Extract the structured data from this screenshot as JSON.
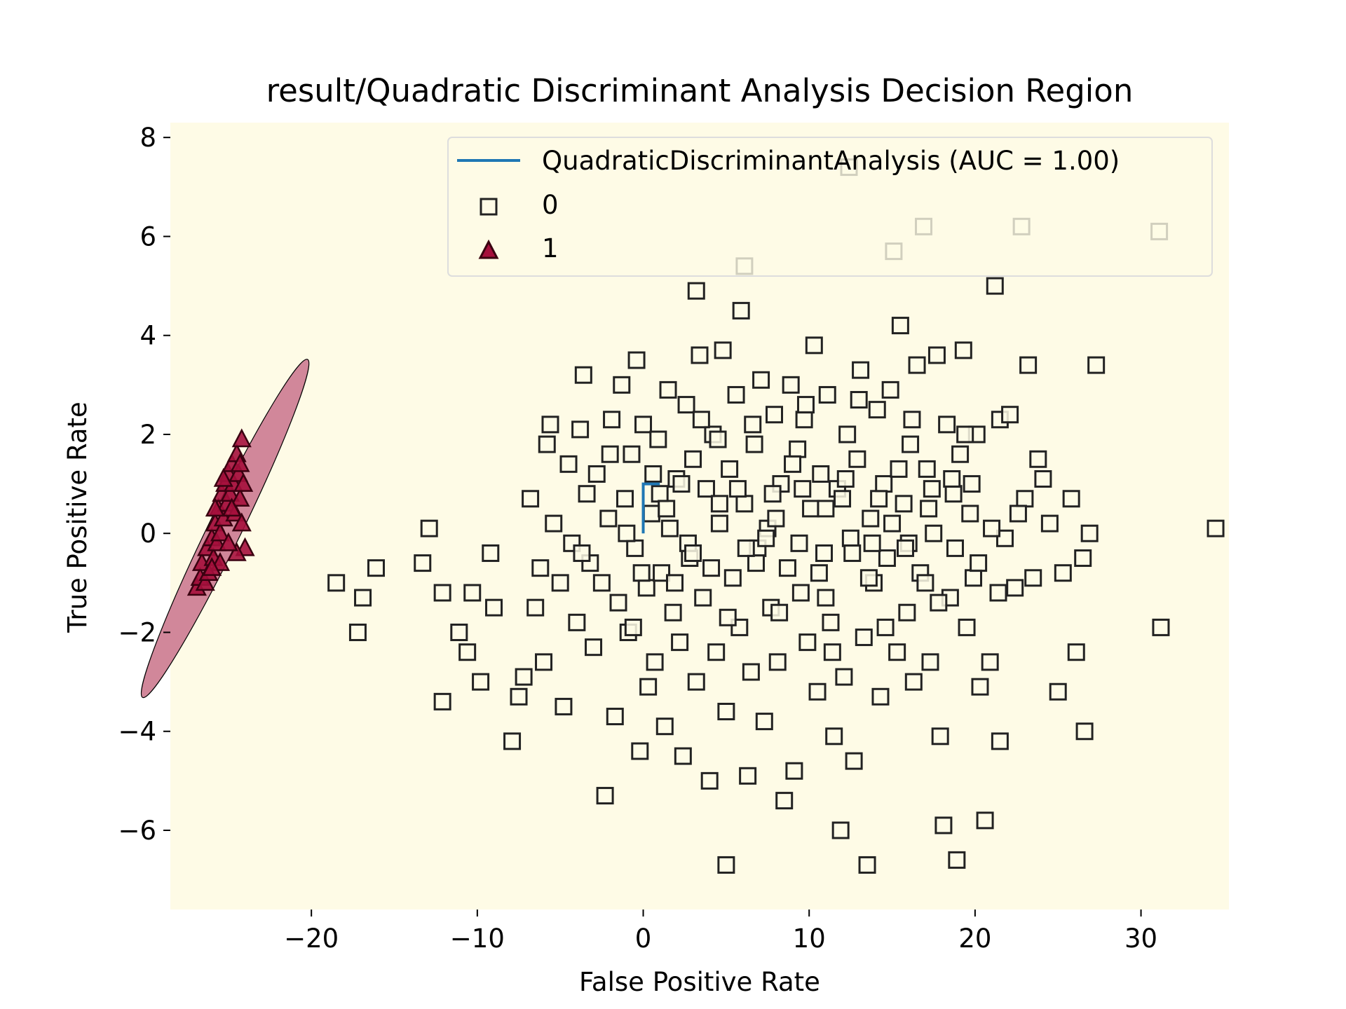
{
  "chart_data": {
    "type": "scatter",
    "title": "result/Quadratic Discriminant Analysis Decision Region",
    "xlabel": "False Positive Rate",
    "ylabel": "True Positive Rate",
    "xlim": [
      -28.5,
      35.3
    ],
    "ylim": [
      -7.6,
      8.3
    ],
    "xticks": [
      -20,
      -10,
      0,
      10,
      20,
      30
    ],
    "xtick_labels": [
      "−20",
      "−10",
      "0",
      "10",
      "20",
      "30"
    ],
    "yticks": [
      -6,
      -4,
      -2,
      0,
      2,
      4,
      6,
      8
    ],
    "ytick_labels": [
      "−6",
      "−4",
      "−2",
      "0",
      "2",
      "4",
      "6",
      "8"
    ],
    "grid": false,
    "legend_position": "top-right",
    "background_color": "#fefbe6",
    "region_colors": {
      "class_0": "#fefbe6",
      "class_1": "#d1879a"
    },
    "decision_region_class_1": {
      "shape": "ellipse",
      "center": [
        -25.2,
        0.1
      ],
      "semi_axis_major": 3.8,
      "semi_axis_minor": 1.0,
      "note_axes_units": "x in x-axis units, y in y-axis units"
    },
    "roc_curve": {
      "name": "QuadraticDiscriminantAnalysis (AUC = 1.00)",
      "color": "#1f77b4",
      "points": [
        [
          0,
          0
        ],
        [
          0,
          1
        ],
        [
          1,
          1
        ]
      ]
    },
    "series": [
      {
        "name": "0",
        "marker": "square",
        "face_color": "#fefbe6",
        "edge_color": "#222222",
        "points": [
          [
            -18.5,
            -1.0
          ],
          [
            -16.9,
            -1.3
          ],
          [
            -16.1,
            -0.7
          ],
          [
            -17.2,
            -2.0
          ],
          [
            -13.3,
            -0.6
          ],
          [
            -12.9,
            0.1
          ],
          [
            -12.1,
            -1.2
          ],
          [
            -11.1,
            -2.0
          ],
          [
            -10.6,
            -2.4
          ],
          [
            -10.3,
            -1.2
          ],
          [
            -9.8,
            -3.0
          ],
          [
            -9.2,
            -0.4
          ],
          [
            -9.0,
            -1.5
          ],
          [
            -12.1,
            -3.4
          ],
          [
            -7.9,
            -4.2
          ],
          [
            -7.5,
            -3.3
          ],
          [
            -7.2,
            -2.9
          ],
          [
            -6.8,
            0.7
          ],
          [
            -6.5,
            -1.5
          ],
          [
            -6.2,
            -0.7
          ],
          [
            -6.0,
            -2.6
          ],
          [
            -5.8,
            1.8
          ],
          [
            -5.6,
            2.2
          ],
          [
            -5.4,
            0.2
          ],
          [
            -5.0,
            -1.0
          ],
          [
            -4.8,
            -3.5
          ],
          [
            -4.5,
            1.4
          ],
          [
            -4.3,
            -0.2
          ],
          [
            -4.0,
            -1.8
          ],
          [
            -3.8,
            2.1
          ],
          [
            -3.6,
            3.2
          ],
          [
            -3.4,
            0.8
          ],
          [
            -3.2,
            -0.6
          ],
          [
            -3.0,
            -2.3
          ],
          [
            -2.8,
            1.2
          ],
          [
            -2.5,
            -1.0
          ],
          [
            -2.3,
            -5.3
          ],
          [
            -2.1,
            0.3
          ],
          [
            -1.9,
            2.3
          ],
          [
            -1.7,
            -3.7
          ],
          [
            -1.5,
            -1.4
          ],
          [
            -1.3,
            3.0
          ],
          [
            -1.1,
            0.7
          ],
          [
            -0.9,
            -2.0
          ],
          [
            -0.7,
            1.6
          ],
          [
            -0.5,
            -0.3
          ],
          [
            -0.4,
            3.5
          ],
          [
            -0.2,
            -4.4
          ],
          [
            0.0,
            2.2
          ],
          [
            0.2,
            -1.1
          ],
          [
            0.3,
            -3.1
          ],
          [
            0.5,
            0.4
          ],
          [
            0.7,
            -2.6
          ],
          [
            0.9,
            1.9
          ],
          [
            1.1,
            -0.8
          ],
          [
            1.3,
            -3.9
          ],
          [
            1.5,
            2.9
          ],
          [
            1.6,
            0.1
          ],
          [
            1.8,
            -1.6
          ],
          [
            2.0,
            1.1
          ],
          [
            2.2,
            -2.2
          ],
          [
            2.4,
            -4.5
          ],
          [
            2.6,
            2.6
          ],
          [
            2.8,
            -0.5
          ],
          [
            3.0,
            1.5
          ],
          [
            3.2,
            -3.0
          ],
          [
            3.2,
            4.9
          ],
          [
            3.4,
            3.6
          ],
          [
            3.6,
            -1.3
          ],
          [
            3.8,
            0.9
          ],
          [
            4.0,
            -5.0
          ],
          [
            4.2,
            2.0
          ],
          [
            4.4,
            -2.4
          ],
          [
            4.6,
            0.2
          ],
          [
            4.8,
            3.7
          ],
          [
            5.0,
            -3.6
          ],
          [
            5.2,
            1.3
          ],
          [
            5.0,
            -6.7
          ],
          [
            5.4,
            -0.9
          ],
          [
            5.6,
            2.8
          ],
          [
            5.8,
            -1.9
          ],
          [
            5.9,
            4.5
          ],
          [
            6.1,
            0.6
          ],
          [
            6.1,
            5.4
          ],
          [
            6.3,
            -4.9
          ],
          [
            6.5,
            -2.8
          ],
          [
            6.7,
            1.8
          ],
          [
            6.9,
            -0.3
          ],
          [
            7.1,
            3.1
          ],
          [
            7.3,
            -3.8
          ],
          [
            7.5,
            0.1
          ],
          [
            7.7,
            -1.5
          ],
          [
            7.9,
            2.4
          ],
          [
            8.1,
            -2.6
          ],
          [
            8.3,
            1.0
          ],
          [
            8.5,
            -5.4
          ],
          [
            8.7,
            -0.7
          ],
          [
            8.9,
            3.0
          ],
          [
            9.1,
            -4.8
          ],
          [
            9.3,
            1.7
          ],
          [
            9.5,
            -1.2
          ],
          [
            9.7,
            2.3
          ],
          [
            9.9,
            -2.2
          ],
          [
            10.1,
            0.5
          ],
          [
            10.3,
            3.8
          ],
          [
            10.5,
            -3.2
          ],
          [
            10.7,
            1.2
          ],
          [
            10.9,
            -0.4
          ],
          [
            11.1,
            2.8
          ],
          [
            11.3,
            -1.8
          ],
          [
            11.5,
            -4.1
          ],
          [
            11.7,
            0.9
          ],
          [
            11.9,
            -6.0
          ],
          [
            12.1,
            -2.9
          ],
          [
            12.3,
            2.0
          ],
          [
            12.5,
            -0.1
          ],
          [
            12.7,
            -4.6
          ],
          [
            12.9,
            1.5
          ],
          [
            13.1,
            3.3
          ],
          [
            13.3,
            -2.1
          ],
          [
            13.5,
            -6.7
          ],
          [
            13.7,
            0.3
          ],
          [
            13.9,
            -1.0
          ],
          [
            14.1,
            2.5
          ],
          [
            14.3,
            -3.3
          ],
          [
            14.5,
            1.0
          ],
          [
            14.7,
            -0.5
          ],
          [
            14.9,
            2.9
          ],
          [
            15.1,
            5.7
          ],
          [
            15.3,
            -2.4
          ],
          [
            15.5,
            4.2
          ],
          [
            15.7,
            0.6
          ],
          [
            15.9,
            -1.6
          ],
          [
            16.1,
            1.8
          ],
          [
            16.3,
            -3.0
          ],
          [
            16.5,
            3.4
          ],
          [
            16.7,
            -0.8
          ],
          [
            16.9,
            6.2
          ],
          [
            17.1,
            1.3
          ],
          [
            17.3,
            -2.6
          ],
          [
            17.5,
            0.0
          ],
          [
            17.7,
            3.6
          ],
          [
            17.9,
            -4.1
          ],
          [
            18.1,
            -5.9
          ],
          [
            18.3,
            2.2
          ],
          [
            18.5,
            -1.3
          ],
          [
            18.7,
            0.8
          ],
          [
            18.9,
            -6.6
          ],
          [
            19.1,
            1.6
          ],
          [
            19.3,
            3.7
          ],
          [
            19.5,
            -1.9
          ],
          [
            19.7,
            0.4
          ],
          [
            19.9,
            -0.9
          ],
          [
            20.1,
            2.0
          ],
          [
            20.3,
            -3.1
          ],
          [
            20.6,
            -5.8
          ],
          [
            20.9,
            -2.6
          ],
          [
            21.2,
            5.0
          ],
          [
            21.5,
            2.3
          ],
          [
            21.8,
            -0.1
          ],
          [
            21.5,
            -4.2
          ],
          [
            22.1,
            2.4
          ],
          [
            22.4,
            -1.1
          ],
          [
            22.8,
            6.2
          ],
          [
            23.0,
            0.7
          ],
          [
            23.2,
            3.4
          ],
          [
            23.5,
            -0.9
          ],
          [
            23.8,
            1.5
          ],
          [
            24.1,
            1.1
          ],
          [
            24.5,
            0.2
          ],
          [
            25.0,
            -3.2
          ],
          [
            25.3,
            -0.8
          ],
          [
            25.8,
            0.7
          ],
          [
            26.1,
            -2.4
          ],
          [
            26.5,
            -0.5
          ],
          [
            26.6,
            -4.0
          ],
          [
            27.3,
            3.4
          ],
          [
            26.9,
            0.0
          ],
          [
            31.1,
            6.1
          ],
          [
            31.2,
            -1.9
          ],
          [
            34.5,
            0.1
          ],
          [
            12.4,
            7.4
          ],
          [
            -0.6,
            -1.9
          ],
          [
            1.0,
            0.8
          ],
          [
            2.7,
            -0.2
          ],
          [
            4.5,
            1.9
          ],
          [
            6.8,
            -0.6
          ],
          [
            8.0,
            0.3
          ],
          [
            9.6,
            0.9
          ],
          [
            11.0,
            -1.3
          ],
          [
            12.0,
            0.7
          ],
          [
            13.6,
            -0.9
          ],
          [
            15.0,
            0.2
          ],
          [
            16.0,
            -0.2
          ],
          [
            17.2,
            0.5
          ],
          [
            18.8,
            -0.3
          ],
          [
            19.8,
            1.0
          ],
          [
            21.0,
            0.1
          ],
          [
            22.6,
            0.4
          ],
          [
            -1.0,
            0.0
          ],
          [
            0.6,
            1.2
          ],
          [
            2.3,
            1.0
          ],
          [
            4.1,
            -0.7
          ],
          [
            5.7,
            0.9
          ],
          [
            7.4,
            -0.1
          ],
          [
            9.0,
            1.4
          ],
          [
            10.6,
            -0.8
          ],
          [
            12.2,
            1.1
          ],
          [
            13.8,
            -0.2
          ],
          [
            15.4,
            1.3
          ],
          [
            17.0,
            -1.0
          ],
          [
            18.6,
            1.1
          ],
          [
            20.2,
            -0.6
          ],
          [
            -2.0,
            1.6
          ],
          [
            -3.7,
            -0.4
          ],
          [
            1.9,
            -1.0
          ],
          [
            3.5,
            2.3
          ],
          [
            5.1,
            -1.7
          ],
          [
            6.6,
            2.2
          ],
          [
            8.2,
            -1.6
          ],
          [
            9.8,
            2.6
          ],
          [
            11.4,
            -2.4
          ],
          [
            13.0,
            2.7
          ],
          [
            14.6,
            -1.9
          ],
          [
            16.2,
            2.3
          ],
          [
            17.8,
            -1.4
          ],
          [
            19.4,
            2.0
          ],
          [
            21.4,
            -1.2
          ],
          [
            -0.1,
            -0.8
          ],
          [
            1.4,
            0.5
          ],
          [
            3.0,
            -0.4
          ],
          [
            4.6,
            0.6
          ],
          [
            6.2,
            -0.3
          ],
          [
            7.8,
            0.8
          ],
          [
            9.4,
            -0.2
          ],
          [
            11.0,
            0.5
          ],
          [
            12.6,
            -0.4
          ],
          [
            14.2,
            0.7
          ],
          [
            15.8,
            -0.3
          ],
          [
            17.4,
            0.9
          ]
        ]
      },
      {
        "name": "1",
        "marker": "triangle",
        "face_color": "#a50f3c",
        "edge_color": "#3a0010",
        "points": [
          [
            -26.9,
            -1.1
          ],
          [
            -26.7,
            -0.9
          ],
          [
            -26.6,
            -0.6
          ],
          [
            -26.4,
            -1.0
          ],
          [
            -26.3,
            -0.3
          ],
          [
            -26.2,
            -0.8
          ],
          [
            -26.0,
            -0.1
          ],
          [
            -25.9,
            -0.5
          ],
          [
            -25.8,
            0.2
          ],
          [
            -25.7,
            -0.2
          ],
          [
            -25.6,
            0.5
          ],
          [
            -25.5,
            0.0
          ],
          [
            -25.4,
            0.8
          ],
          [
            -25.3,
            0.3
          ],
          [
            -25.2,
            1.0
          ],
          [
            -25.1,
            0.6
          ],
          [
            -25.0,
            1.2
          ],
          [
            -24.9,
            0.8
          ],
          [
            -24.8,
            1.4
          ],
          [
            -24.7,
            1.0
          ],
          [
            -24.6,
            0.4
          ],
          [
            -24.5,
            1.6
          ],
          [
            -24.4,
            1.2
          ],
          [
            -24.3,
            0.7
          ],
          [
            -24.2,
            1.9
          ],
          [
            -24.1,
            1.0
          ],
          [
            -24.0,
            -0.3
          ],
          [
            -24.2,
            0.2
          ],
          [
            -24.5,
            -0.4
          ],
          [
            -25.0,
            -0.2
          ],
          [
            -25.5,
            -0.6
          ],
          [
            -26.0,
            -0.7
          ],
          [
            -25.8,
            0.5
          ],
          [
            -25.3,
            1.1
          ],
          [
            -24.8,
            0.5
          ],
          [
            -24.3,
            1.4
          ]
        ]
      }
    ]
  }
}
